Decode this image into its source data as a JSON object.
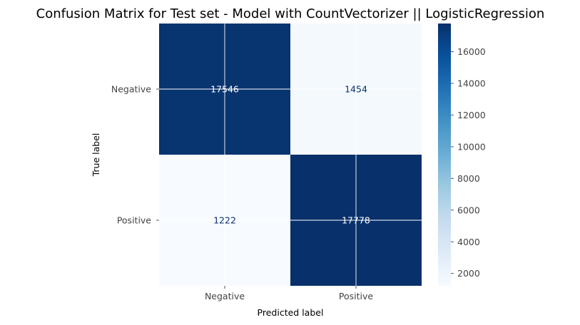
{
  "chart_data": {
    "type": "heatmap",
    "title": "Confusion Matrix for Test set - Model with CountVectorizer || LogisticRegression",
    "xlabel": "Predicted label",
    "ylabel": "True label",
    "x_categories": [
      "Negative",
      "Positive"
    ],
    "y_categories": [
      "Negative",
      "Positive"
    ],
    "values": [
      [
        17546,
        1454
      ],
      [
        1222,
        17778
      ]
    ],
    "cell_labels": [
      [
        "17546",
        "1454"
      ],
      [
        "1222",
        "17778"
      ]
    ],
    "colorbar": {
      "range": [
        1222,
        17778
      ],
      "ticks": [
        2000,
        4000,
        6000,
        8000,
        10000,
        12000,
        14000,
        16000
      ],
      "tick_labels": [
        "2000",
        "4000",
        "6000",
        "8000",
        "10000",
        "12000",
        "14000",
        "16000"
      ],
      "colormap": "Blues"
    },
    "grid": true,
    "colors": {
      "low": "#f7fbff",
      "high": "#08306b",
      "dark_text": "#08306b",
      "light_text": "#ffffff",
      "grid": "#ffffff"
    }
  }
}
